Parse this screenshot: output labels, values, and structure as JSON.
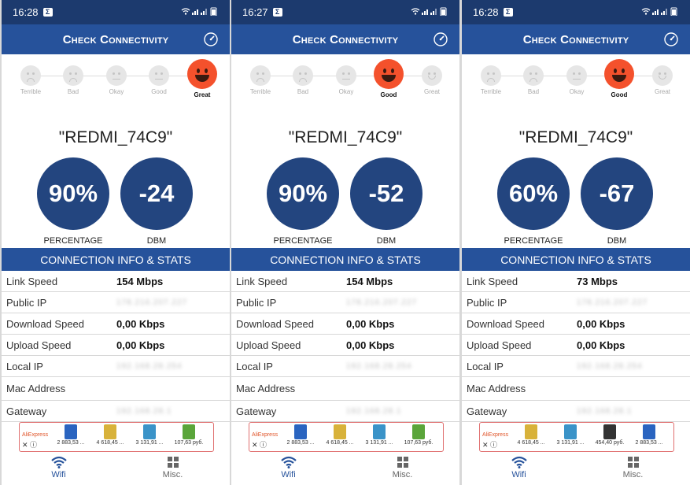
{
  "panels": [
    {
      "status_time": "16:28",
      "status_badge": "Σ",
      "header_title": "Check Connectivity",
      "ratings": [
        "Terrible",
        "Bad",
        "Okay",
        "Good",
        "Great"
      ],
      "active_rating": "Great",
      "ssid": "\"REDMI_74C9\"",
      "percentage_value": "90%",
      "percentage_label": "PERCENTAGE",
      "dbm_value": "-24",
      "dbm_label": "DBM",
      "section_title": "CONNECTION INFO & STATS",
      "rows": [
        {
          "key": "Link Speed",
          "value": "154 Mbps"
        },
        {
          "key": "Public IP",
          "value": "178.216.207.227"
        },
        {
          "key": "Download Speed",
          "value": "0,00 Kbps"
        },
        {
          "key": "Upload Speed",
          "value": "0,00 Kbps"
        },
        {
          "key": "Local IP",
          "value": "192.168.28.254"
        },
        {
          "key": "Mac Address",
          "value": ""
        },
        {
          "key": "Gateway",
          "value": "192.168.28.1"
        }
      ],
      "ad": {
        "brand": "AliExpress",
        "prices": [
          "2 883,53 ...",
          "4 618,45 ...",
          "3 131,91 ...",
          "107,63 руб."
        ],
        "colors": [
          "#2a64c0",
          "#d8b23a",
          "#3a93c8",
          "#5aa53a"
        ]
      },
      "nav": {
        "wifi": "Wifi",
        "misc": "Misc."
      }
    },
    {
      "status_time": "16:27",
      "status_badge": "Σ",
      "header_title": "Check Connectivity",
      "ratings": [
        "Terrible",
        "Bad",
        "Okay",
        "Good",
        "Great"
      ],
      "active_rating": "Good",
      "ssid": "\"REDMI_74C9\"",
      "percentage_value": "90%",
      "percentage_label": "PERCENTAGE",
      "dbm_value": "-52",
      "dbm_label": "DBM",
      "section_title": "CONNECTION INFO & STATS",
      "rows": [
        {
          "key": "Link Speed",
          "value": "154 Mbps"
        },
        {
          "key": "Public IP",
          "value": "178.216.207.227"
        },
        {
          "key": "Download Speed",
          "value": "0,00 Kbps"
        },
        {
          "key": "Upload Speed",
          "value": "0,00 Kbps"
        },
        {
          "key": "Local IP",
          "value": "192.168.28.254"
        },
        {
          "key": "Mac Address",
          "value": ""
        },
        {
          "key": "Gateway",
          "value": "192.168.28.1"
        }
      ],
      "ad": {
        "brand": "AliExpress",
        "prices": [
          "2 883,53 ...",
          "4 618,45 ...",
          "3 131,91 ...",
          "107,63 руб."
        ],
        "colors": [
          "#2a64c0",
          "#d8b23a",
          "#3a93c8",
          "#5aa53a"
        ]
      },
      "nav": {
        "wifi": "Wifi",
        "misc": "Misc."
      }
    },
    {
      "status_time": "16:28",
      "status_badge": "Σ",
      "header_title": "Check Connectivity",
      "ratings": [
        "Terrible",
        "Bad",
        "Okay",
        "Good",
        "Great"
      ],
      "active_rating": "Good",
      "ssid": "\"REDMI_74C9\"",
      "percentage_value": "60%",
      "percentage_label": "PERCENTAGE",
      "dbm_value": "-67",
      "dbm_label": "DBM",
      "section_title": "CONNECTION INFO & STATS",
      "rows": [
        {
          "key": "Link Speed",
          "value": "73 Mbps"
        },
        {
          "key": "Public IP",
          "value": "178.216.207.227"
        },
        {
          "key": "Download Speed",
          "value": "0,00 Kbps"
        },
        {
          "key": "Upload Speed",
          "value": "0,00 Kbps"
        },
        {
          "key": "Local IP",
          "value": "192.168.28.254"
        },
        {
          "key": "Mac Address",
          "value": ""
        },
        {
          "key": "Gateway",
          "value": "192.168.28.1"
        }
      ],
      "ad": {
        "brand": "AliExpress",
        "prices": [
          "4 618,45 ...",
          "3 131,91 ...",
          "454,40 руб.",
          "2 883,53 ..."
        ],
        "colors": [
          "#d8b23a",
          "#3a93c8",
          "#333333",
          "#2a64c0"
        ]
      },
      "nav": {
        "wifi": "Wifi",
        "misc": "Misc."
      }
    }
  ],
  "colors": {
    "status_bar": "#1c3a6e",
    "header": "#26529b",
    "circle": "#23457f",
    "active_face": "#f4512c"
  },
  "blurred_fields": [
    "Public IP",
    "Local IP",
    "Gateway"
  ]
}
